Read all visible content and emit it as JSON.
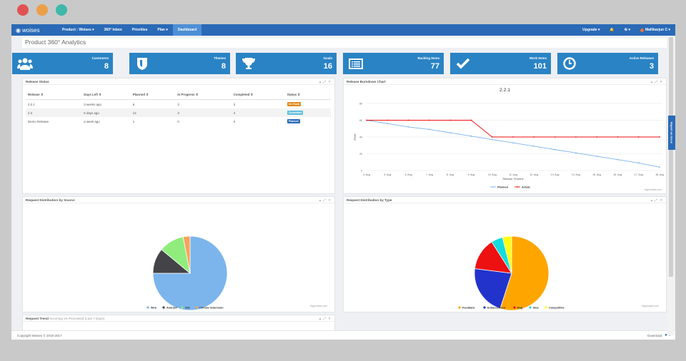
{
  "window_dots": [
    "#e05252",
    "#eb9f47",
    "#3fb8a9"
  ],
  "nav": {
    "brand": "woises",
    "items": [
      "Product : Woises ▾",
      "360° Inbox",
      "Priorities",
      "Plan ▾",
      "Dashboard"
    ],
    "upgrade": "Upgrade ▾",
    "settings": "⚙ ▾",
    "user": "Mallikarjun C ▾"
  },
  "page": {
    "title": "Product 360° Analytics"
  },
  "stats": [
    {
      "label": "Customers",
      "value": "8"
    },
    {
      "label": "Themes",
      "value": "8"
    },
    {
      "label": "Goals",
      "value": "16"
    },
    {
      "label": "Backlog Items",
      "value": "77"
    },
    {
      "label": "Work Items",
      "value": "101"
    },
    {
      "label": "Active Releases",
      "value": "3"
    }
  ],
  "release_status": {
    "title": "Release Status",
    "columns": [
      "Release ⇕",
      "Days Left ⇕",
      "Planned ⇕",
      "In Progress ⇕",
      "Completed ⇕",
      "Status ⇕"
    ],
    "rows": [
      {
        "release": "2.2.1",
        "days_left": "3 weeks ago",
        "planned": "6",
        "in_progress": "3",
        "completed": "3",
        "status": "On Track",
        "status_color": "#e08a1e"
      },
      {
        "release": "2.3",
        "days_left": "5 days ago",
        "planned": "12",
        "in_progress": "3",
        "completed": "4",
        "status": "Committed",
        "status_color": "#5bc0de"
      },
      {
        "release": "Demo Release",
        "days_left": "a week ago",
        "planned": "1",
        "in_progress": "0",
        "completed": "0",
        "status": "Planned",
        "status_color": "#2a6ab7"
      }
    ]
  },
  "burndown": {
    "panel_title": "Release Burndown Chart",
    "credit": "Highcharts.com"
  },
  "dist_source": {
    "panel_title": "Request Distribution by Source",
    "credit": "Highcharts.com"
  },
  "dist_type": {
    "panel_title": "Request Distribution by Type",
    "credit": "Highcharts.com"
  },
  "trend": {
    "panel_title": "Request Trend",
    "subtitle": "Incoming Vs Processed (Last 7 Days)"
  },
  "side_tab": "Report an Issue",
  "footer": {
    "copyright": "Copyright Woises © 2016-2017",
    "download": "Download"
  },
  "chart_data": [
    {
      "type": "line",
      "title": "2.2.1",
      "xlabel": "Release Timeline",
      "ylabel": "Effort",
      "categories": [
        "4. Aug",
        "5. Aug",
        "6. Aug",
        "7. Aug",
        "8. Aug",
        "9. Aug",
        "10. Aug",
        "11. Aug",
        "12. Aug",
        "13. Aug",
        "14. Aug",
        "15. Aug",
        "16. Aug",
        "17. Aug",
        "18. Aug"
      ],
      "ylim": [
        0,
        80
      ],
      "yticks": [
        "0",
        "20",
        "40",
        "60",
        "80"
      ],
      "series": [
        {
          "name": "Planned",
          "color": "#7cb5ec",
          "values": [
            60,
            56,
            52,
            49,
            45,
            41,
            37,
            33,
            29,
            25,
            21,
            17,
            13,
            9,
            4
          ]
        },
        {
          "name": "Actual",
          "color": "#ee1111",
          "values": [
            60,
            60,
            60,
            60,
            60,
            60,
            40,
            40,
            40,
            40,
            40,
            40,
            40,
            40,
            40
          ]
        }
      ],
      "legend": "bottom-center"
    },
    {
      "type": "pie",
      "slices": [
        {
          "name": "Web",
          "value": 75,
          "color": "#7cb5ec"
        },
        {
          "name": "Android",
          "value": 11,
          "color": "#434348"
        },
        {
          "name": "iOS",
          "value": 11,
          "color": "#90ed7d"
        },
        {
          "name": "Chrome Extension",
          "value": 3,
          "color": "#f7a35c"
        }
      ],
      "legend": "bottom-center"
    },
    {
      "type": "pie",
      "slices": [
        {
          "name": "Feedback",
          "value": 55,
          "color": "#ffa500"
        },
        {
          "name": "Enhancement",
          "value": 22,
          "color": "#2233cc"
        },
        {
          "name": "Bug",
          "value": 14,
          "color": "#ee1111"
        },
        {
          "name": "Idea",
          "value": 5,
          "color": "#11dddd"
        },
        {
          "name": "Competitive",
          "value": 4,
          "color": "#ffff11"
        }
      ],
      "legend": "bottom-center"
    }
  ]
}
